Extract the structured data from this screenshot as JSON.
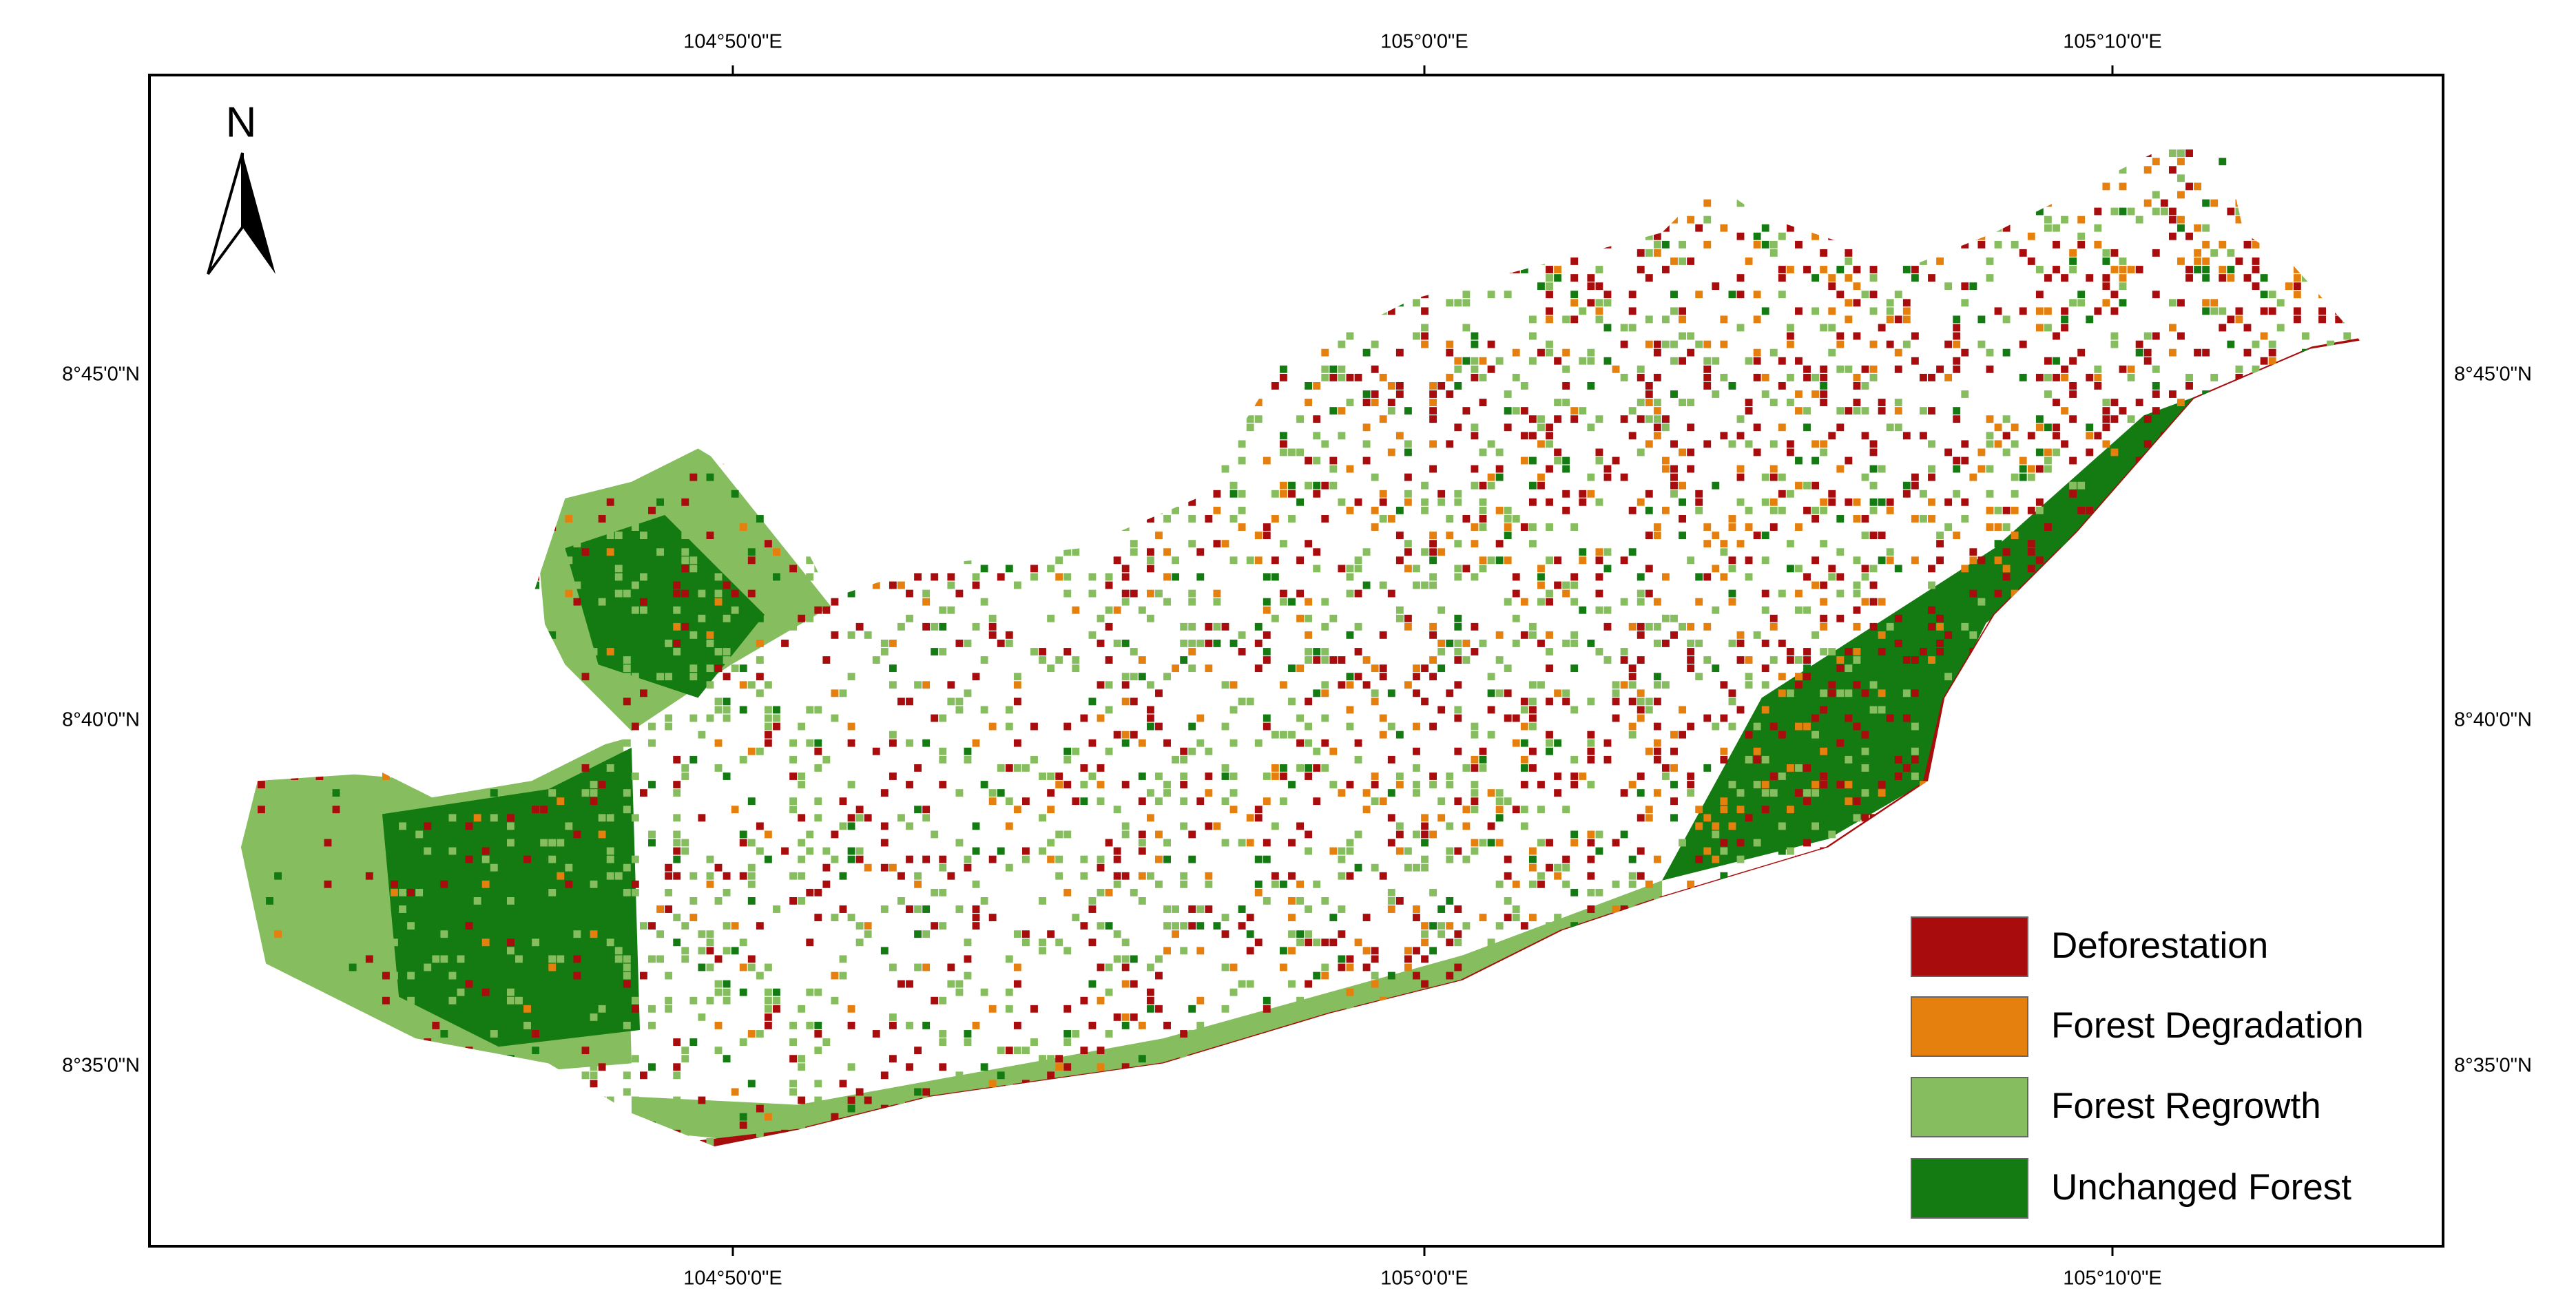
{
  "map": {
    "north_label": "N",
    "top_labels": [
      "104°50'0\"E",
      "105°0'0\"E",
      "105°10'0\"E"
    ],
    "bottom_labels": [
      "104°50'0\"E",
      "105°0'0\"E",
      "105°10'0\"E"
    ],
    "left_labels": [
      "8°45'0\"N",
      "8°40'0\"N",
      "8°35'0\"N"
    ],
    "right_labels": [
      "8°45'0\"N",
      "8°40'0\"N",
      "8°35'0\"N"
    ],
    "legend": [
      {
        "label": "Deforestation",
        "color": "#a80c0c"
      },
      {
        "label": "Forest Degradation",
        "color": "#e5800f"
      },
      {
        "label": "Forest Regrowth",
        "color": "#86bd5e"
      },
      {
        "label": "Unchanged Forest",
        "color": "#147a12"
      }
    ]
  }
}
